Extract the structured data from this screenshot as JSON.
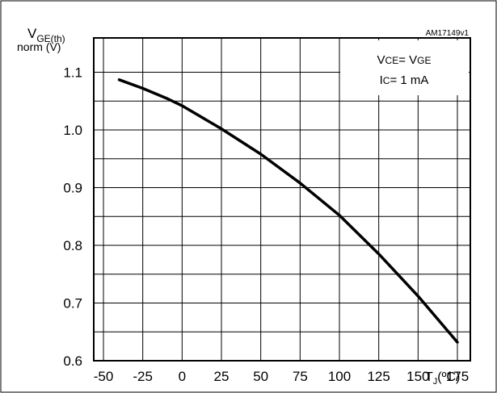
{
  "chart_data": {
    "type": "line",
    "code": "AM17149v1",
    "ylabel": {
      "main": "V",
      "sub": "GE(th)",
      "line2": "norm (V)"
    },
    "xlabel": {
      "main": "T",
      "sub": "J",
      "unit": "(ºC)"
    },
    "annotation": {
      "line1_a": "V",
      "line1_a_sub": "CE",
      "line1_b": "= V",
      "line1_b_sub": "GE",
      "line2_a": "I",
      "line2_a_sub": "C",
      "line2_b": "= 1 mA"
    },
    "xlim": [
      -50,
      175
    ],
    "ylim": [
      0.6,
      1.125
    ],
    "x_ticks": [
      "-50",
      "-25",
      "0",
      "25",
      "50",
      "75",
      "100",
      "125",
      "150",
      "175"
    ],
    "y_ticks": [
      "0.6",
      "0.7",
      "0.8",
      "0.9",
      "1.0",
      "1.1"
    ],
    "series": [
      {
        "x": [
          -40,
          -25,
          -10,
          0,
          25,
          50,
          75,
          100,
          125,
          150,
          175
        ],
        "y": [
          1.087,
          1.072,
          1.055,
          1.042,
          1.002,
          0.958,
          0.908,
          0.852,
          0.785,
          0.712,
          0.632
        ]
      }
    ],
    "grid": true,
    "line_color": "#000000"
  }
}
